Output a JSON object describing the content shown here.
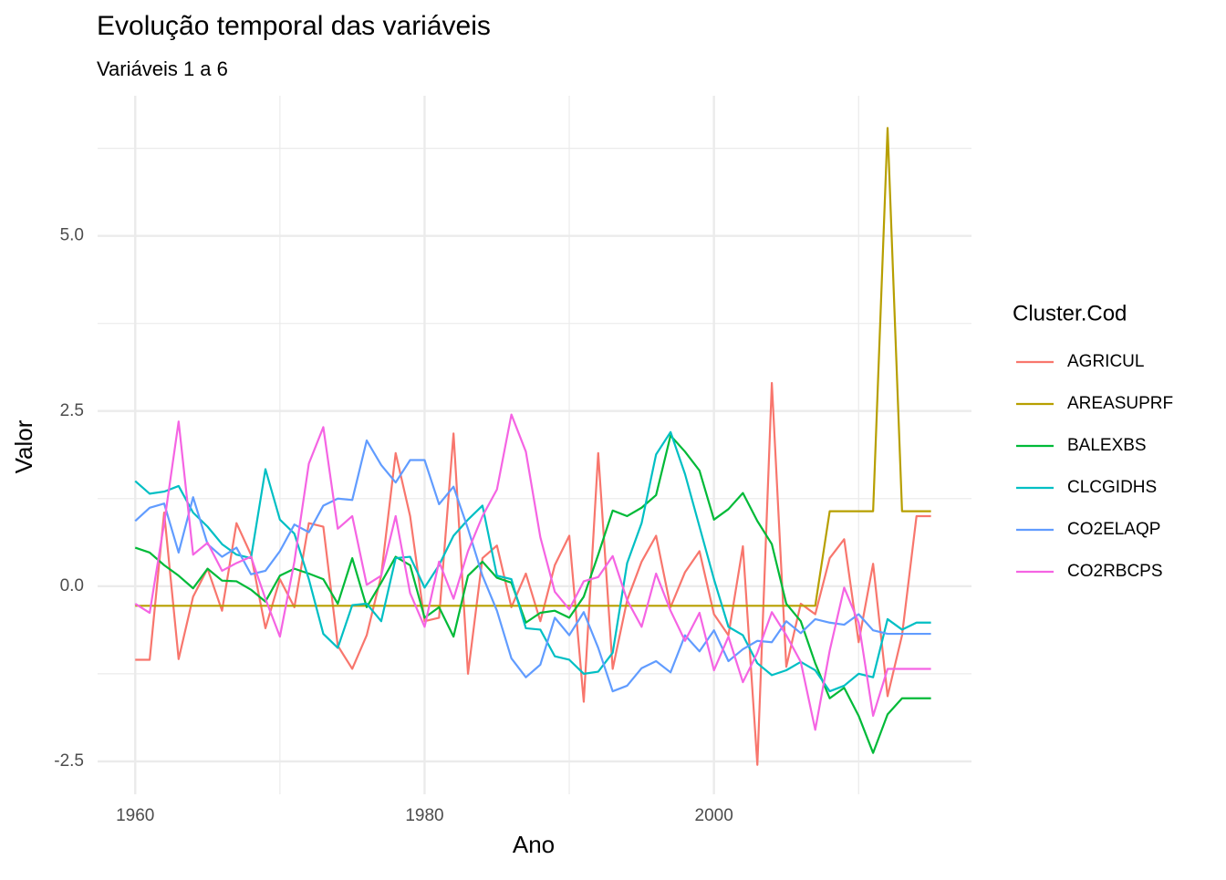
{
  "chart_data": {
    "type": "line",
    "title": "Evolução temporal das variáveis",
    "subtitle": "Variáveis 1 a 6",
    "x_label": "Ano",
    "y_label": "Valor",
    "legend_title": "Cluster.Cod",
    "legend_position": "right",
    "grid": true,
    "x": [
      1960,
      1961,
      1962,
      1963,
      1964,
      1965,
      1966,
      1967,
      1968,
      1969,
      1970,
      1971,
      1972,
      1973,
      1974,
      1975,
      1976,
      1977,
      1978,
      1979,
      1980,
      1981,
      1982,
      1983,
      1984,
      1985,
      1986,
      1987,
      1988,
      1989,
      1990,
      1991,
      1992,
      1993,
      1994,
      1995,
      1996,
      1997,
      1998,
      1999,
      2000,
      2001,
      2002,
      2003,
      2004,
      2005,
      2006,
      2007,
      2008,
      2009,
      2010,
      2011,
      2012,
      2013,
      2014,
      2015
    ],
    "xlim": [
      1957.4,
      2017.8
    ],
    "ylim": [
      -2.97,
      7.0
    ],
    "xticks": [
      1960,
      1980,
      2000
    ],
    "xminor": [
      1970,
      1990,
      2010
    ],
    "yticks": [
      {
        "value": -2.5,
        "label": "-2.5"
      },
      {
        "value": 0,
        "label": "0.0"
      },
      {
        "value": 2.5,
        "label": "2.5"
      },
      {
        "value": 5,
        "label": "5.0"
      }
    ],
    "yminor": [
      -1.25,
      1.25,
      3.75,
      6.25
    ],
    "series": [
      {
        "name": "AGRICUL",
        "color": "#F8766D",
        "values": [
          -1.05,
          -1.05,
          1.05,
          -1.04,
          -0.15,
          0.25,
          -0.35,
          0.9,
          0.45,
          -0.6,
          0.1,
          -0.3,
          0.9,
          0.85,
          -0.85,
          -1.18,
          -0.7,
          0.15,
          1.9,
          1.0,
          -0.5,
          -0.45,
          2.18,
          -1.25,
          0.4,
          0.58,
          -0.3,
          0.18,
          -0.5,
          0.3,
          0.72,
          -1.65,
          1.9,
          -1.18,
          -0.2,
          0.35,
          0.72,
          -0.3,
          0.2,
          0.5,
          -0.4,
          -0.7,
          0.57,
          -2.55,
          2.9,
          -1.15,
          -0.25,
          -0.4,
          0.4,
          0.67,
          -0.8,
          0.32,
          -1.57,
          -0.7,
          1.0,
          1.0
        ]
      },
      {
        "name": "AREASUPRF",
        "color": "#B79F00",
        "values": [
          -0.28,
          -0.28,
          -0.28,
          -0.28,
          -0.28,
          -0.28,
          -0.28,
          -0.28,
          -0.28,
          -0.28,
          -0.28,
          -0.28,
          -0.28,
          -0.28,
          -0.28,
          -0.28,
          -0.28,
          -0.28,
          -0.28,
          -0.28,
          -0.28,
          -0.28,
          -0.28,
          -0.28,
          -0.28,
          -0.28,
          -0.28,
          -0.28,
          -0.28,
          -0.28,
          -0.28,
          -0.28,
          -0.28,
          -0.28,
          -0.28,
          -0.28,
          -0.28,
          -0.28,
          -0.28,
          -0.28,
          -0.28,
          -0.28,
          -0.28,
          -0.28,
          -0.28,
          -0.28,
          -0.28,
          -0.28,
          1.07,
          1.07,
          1.07,
          1.07,
          6.54,
          1.07,
          1.07,
          1.07
        ]
      },
      {
        "name": "BALEXBS",
        "color": "#00BA38",
        "values": [
          0.55,
          0.48,
          0.3,
          0.15,
          -0.03,
          0.25,
          0.08,
          0.07,
          -0.05,
          -0.22,
          0.15,
          0.25,
          0.18,
          0.1,
          -0.25,
          0.4,
          -0.3,
          0.05,
          0.42,
          0.3,
          -0.45,
          -0.3,
          -0.72,
          0.15,
          0.35,
          0.12,
          0.05,
          -0.52,
          -0.38,
          -0.35,
          -0.45,
          -0.15,
          0.45,
          1.08,
          1.0,
          1.12,
          1.3,
          2.15,
          1.92,
          1.65,
          0.95,
          1.1,
          1.33,
          0.93,
          0.6,
          -0.25,
          -0.5,
          -1.1,
          -1.6,
          -1.45,
          -1.85,
          -2.38,
          -1.83,
          -1.6,
          -1.6,
          -1.6
        ]
      },
      {
        "name": "CLCGIDHS",
        "color": "#00BFC4",
        "values": [
          1.5,
          1.32,
          1.35,
          1.43,
          1.05,
          0.85,
          0.6,
          0.45,
          0.4,
          1.67,
          0.95,
          0.75,
          0.1,
          -0.68,
          -0.88,
          -0.27,
          -0.25,
          -0.5,
          0.4,
          0.42,
          -0.02,
          0.3,
          0.72,
          0.95,
          1.15,
          0.15,
          0.1,
          -0.6,
          -0.62,
          -1.0,
          -1.05,
          -1.25,
          -1.22,
          -0.95,
          0.33,
          0.9,
          1.88,
          2.2,
          1.6,
          0.85,
          0.1,
          -0.58,
          -0.7,
          -1.1,
          -1.27,
          -1.2,
          -1.08,
          -1.2,
          -1.5,
          -1.42,
          -1.25,
          -1.3,
          -0.47,
          -0.62,
          -0.52,
          -0.52
        ]
      },
      {
        "name": "CO2ELAQP",
        "color": "#619CFF",
        "values": [
          0.93,
          1.12,
          1.18,
          0.48,
          1.27,
          0.6,
          0.42,
          0.55,
          0.17,
          0.22,
          0.5,
          0.88,
          0.77,
          1.15,
          1.25,
          1.23,
          2.08,
          1.73,
          1.48,
          1.8,
          1.8,
          1.17,
          1.42,
          0.82,
          0.15,
          -0.35,
          -1.03,
          -1.3,
          -1.12,
          -0.45,
          -0.7,
          -0.37,
          -0.88,
          -1.5,
          -1.42,
          -1.17,
          -1.07,
          -1.23,
          -0.7,
          -0.93,
          -0.63,
          -1.07,
          -0.9,
          -0.78,
          -0.8,
          -0.5,
          -0.67,
          -0.47,
          -0.52,
          -0.55,
          -0.4,
          -0.63,
          -0.68,
          -0.68,
          -0.68,
          -0.68
        ]
      },
      {
        "name": "CO2RBCPS",
        "color": "#F564E3",
        "values": [
          -0.25,
          -0.38,
          0.9,
          2.35,
          0.45,
          0.62,
          0.22,
          0.33,
          0.42,
          -0.18,
          -0.72,
          0.35,
          1.75,
          2.27,
          0.82,
          1.0,
          0.02,
          0.15,
          1.0,
          -0.1,
          -0.58,
          0.35,
          -0.18,
          0.5,
          1.0,
          1.38,
          2.45,
          1.92,
          0.7,
          -0.08,
          -0.33,
          0.07,
          0.13,
          0.43,
          -0.2,
          -0.58,
          0.18,
          -0.35,
          -0.78,
          -0.38,
          -1.2,
          -0.72,
          -1.37,
          -0.95,
          -0.37,
          -0.7,
          -1.08,
          -2.05,
          -0.92,
          -0.02,
          -0.52,
          -1.85,
          -1.18,
          -1.18,
          -1.18,
          -1.18
        ]
      }
    ]
  }
}
